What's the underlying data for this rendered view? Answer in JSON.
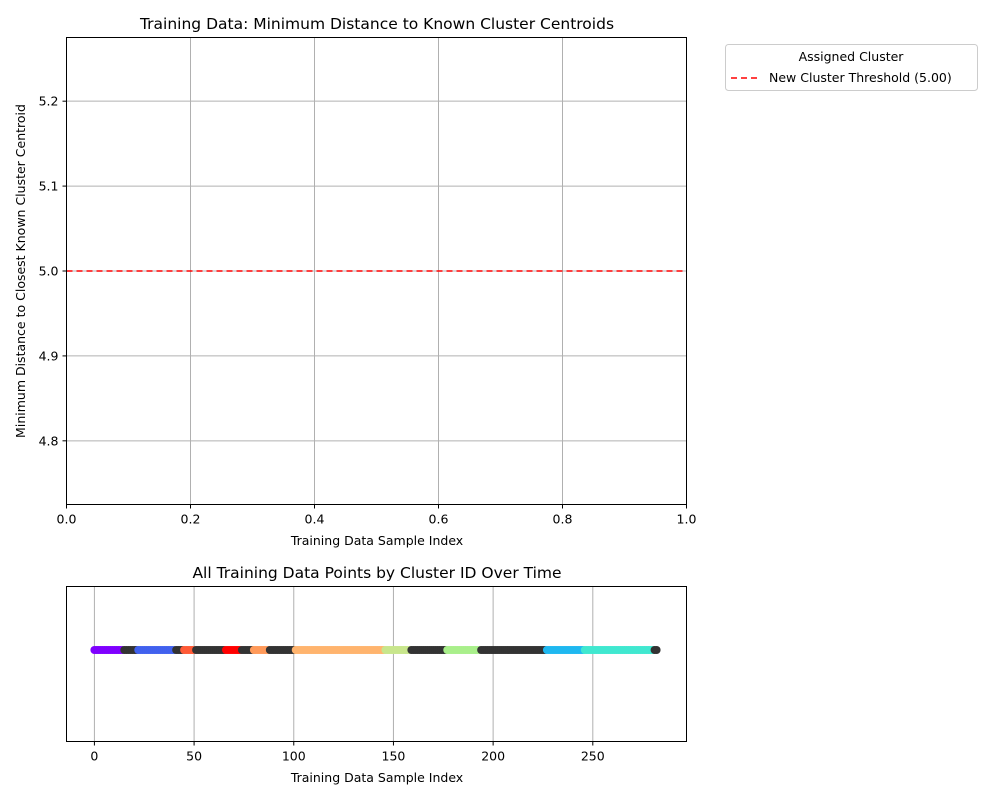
{
  "chart_data": [
    {
      "type": "scatter",
      "title": "Training Data: Minimum Distance to Known Cluster Centroids",
      "xlabel": "Training Data Sample Index",
      "ylabel": "Minimum Distance to Closest Known Cluster Centroid",
      "xlim": [
        0.0,
        1.0
      ],
      "ylim": [
        4.725,
        5.275
      ],
      "x_ticks": [
        "0.0",
        "0.2",
        "0.4",
        "0.6",
        "0.8",
        "1.0"
      ],
      "y_ticks": [
        "4.8",
        "4.9",
        "5.0",
        "5.1",
        "5.2"
      ],
      "grid": true,
      "threshold": {
        "value": 5.0,
        "label": "New Cluster Threshold (5.00)",
        "color": "#ff0000",
        "style": "dashed"
      },
      "legend": {
        "title": "Assigned Cluster",
        "placement": "outside-top-right"
      },
      "series": []
    },
    {
      "type": "scatter",
      "title": "All Training Data Points by Cluster ID Over Time",
      "xlabel": "Training Data Sample Index",
      "ylabel": "",
      "xlim": [
        -14,
        297
      ],
      "x_ticks": [
        "0",
        "50",
        "100",
        "150",
        "200",
        "250"
      ],
      "grid": true,
      "y_constant": 0,
      "segments": [
        {
          "start": 0,
          "end": 14,
          "color": "#7f00ff"
        },
        {
          "start": 15,
          "end": 21,
          "color": "#333333"
        },
        {
          "start": 22,
          "end": 40,
          "color": "#4161ee"
        },
        {
          "start": 41,
          "end": 44,
          "color": "#333333"
        },
        {
          "start": 45,
          "end": 50,
          "color": "#ff5a36"
        },
        {
          "start": 51,
          "end": 65,
          "color": "#333333"
        },
        {
          "start": 66,
          "end": 73,
          "color": "#ff0000"
        },
        {
          "start": 74,
          "end": 79,
          "color": "#333333"
        },
        {
          "start": 80,
          "end": 87,
          "color": "#ff9a5a"
        },
        {
          "start": 88,
          "end": 100,
          "color": "#333333"
        },
        {
          "start": 101,
          "end": 145,
          "color": "#ffb46e"
        },
        {
          "start": 146,
          "end": 158,
          "color": "#c8e68c"
        },
        {
          "start": 159,
          "end": 176,
          "color": "#333333"
        },
        {
          "start": 177,
          "end": 193,
          "color": "#a9ef8b"
        },
        {
          "start": 194,
          "end": 226,
          "color": "#333333"
        },
        {
          "start": 227,
          "end": 245,
          "color": "#1fb8f0"
        },
        {
          "start": 246,
          "end": 280,
          "color": "#40e8d0"
        },
        {
          "start": 281,
          "end": 282,
          "color": "#333333"
        }
      ]
    }
  ]
}
